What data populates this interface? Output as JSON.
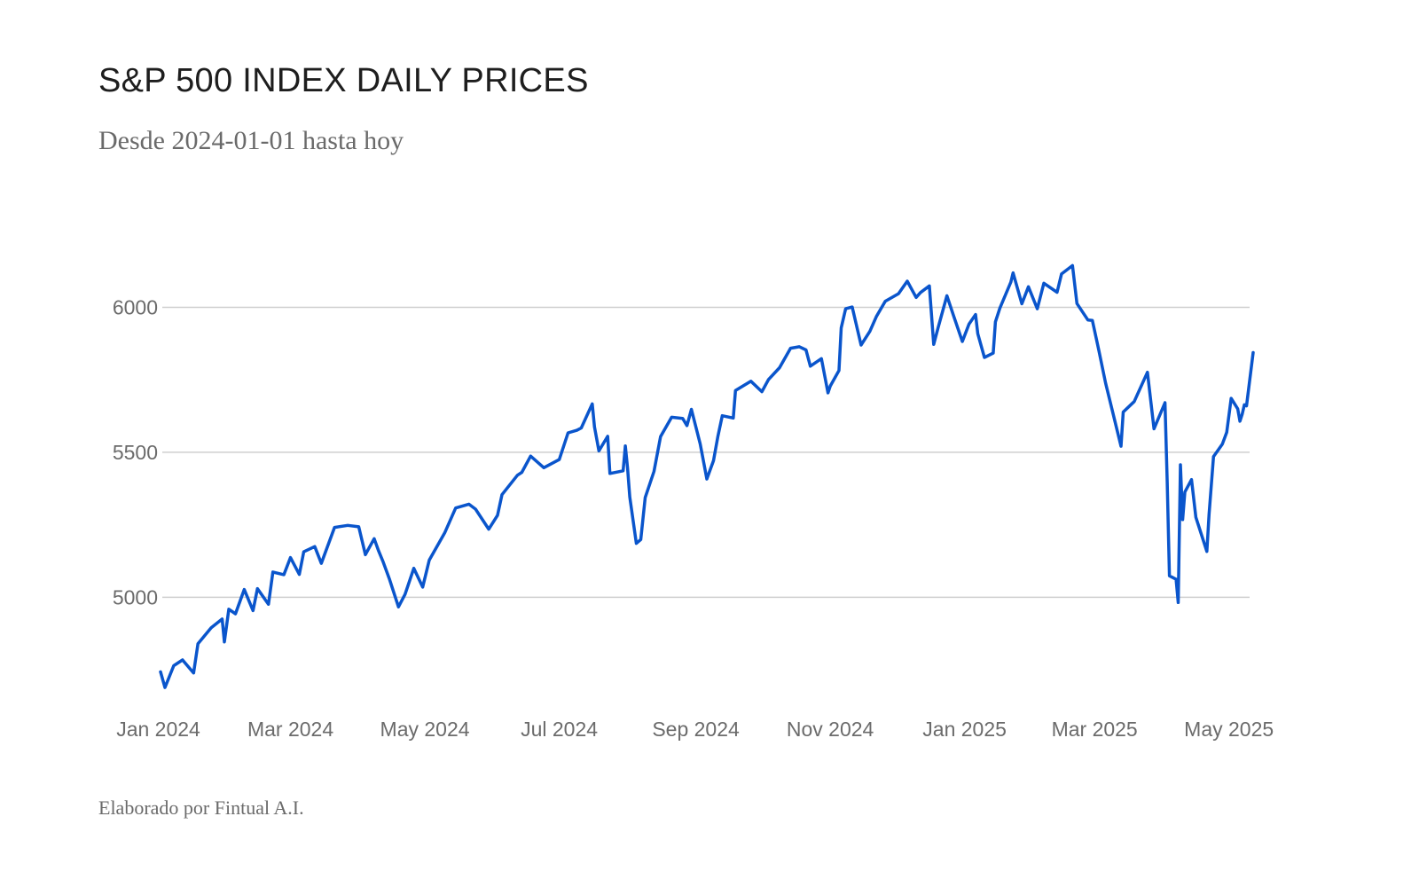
{
  "title": "S&P 500 INDEX DAILY PRICES",
  "subtitle": "Desde 2024-01-01 hasta hoy",
  "footer": "Elaborado por Fintual A.I.",
  "chart_data": {
    "type": "line",
    "title": "S&P 500 INDEX DAILY PRICES",
    "subtitle": "Desde 2024-01-01 hasta hoy",
    "xlabel": "",
    "ylabel": "",
    "grid": true,
    "legend": "none",
    "line_color": "#0a55cc",
    "grid_color": "#cfcfcf",
    "x_range": [
      "2024-01-02",
      "2025-05-12"
    ],
    "ylim": [
      4680,
      6240
    ],
    "y_ticks": [
      5000,
      5500,
      6000
    ],
    "y_tick_labels": [
      "5000",
      "5500",
      "6000"
    ],
    "x_ticks": [
      "2024-01-01",
      "2024-03-01",
      "2024-05-01",
      "2024-07-01",
      "2024-09-01",
      "2024-11-01",
      "2025-01-01",
      "2025-03-01",
      "2025-05-01"
    ],
    "x_tick_labels": [
      "Jan 2024",
      "Mar 2024",
      "May 2024",
      "Jul 2024",
      "Sep 2024",
      "Nov 2024",
      "Jan 2025",
      "Mar 2025",
      "May 2025"
    ],
    "series": [
      {
        "name": "S&P 500",
        "points": [
          [
            "2024-01-02",
            4743
          ],
          [
            "2024-01-04",
            4689
          ],
          [
            "2024-01-08",
            4764
          ],
          [
            "2024-01-12",
            4784
          ],
          [
            "2024-01-17",
            4739
          ],
          [
            "2024-01-19",
            4840
          ],
          [
            "2024-01-25",
            4895
          ],
          [
            "2024-01-30",
            4925
          ],
          [
            "2024-01-31",
            4846
          ],
          [
            "2024-02-02",
            4959
          ],
          [
            "2024-02-05",
            4943
          ],
          [
            "2024-02-09",
            5027
          ],
          [
            "2024-02-13",
            4954
          ],
          [
            "2024-02-15",
            5030
          ],
          [
            "2024-02-20",
            4976
          ],
          [
            "2024-02-22",
            5087
          ],
          [
            "2024-02-27",
            5078
          ],
          [
            "2024-03-01",
            5137
          ],
          [
            "2024-03-05",
            5079
          ],
          [
            "2024-03-07",
            5157
          ],
          [
            "2024-03-12",
            5175
          ],
          [
            "2024-03-15",
            5117
          ],
          [
            "2024-03-21",
            5241
          ],
          [
            "2024-03-27",
            5248
          ],
          [
            "2024-04-01",
            5243
          ],
          [
            "2024-04-04",
            5147
          ],
          [
            "2024-04-08",
            5202
          ],
          [
            "2024-04-10",
            5160
          ],
          [
            "2024-04-12",
            5123
          ],
          [
            "2024-04-15",
            5061
          ],
          [
            "2024-04-19",
            4967
          ],
          [
            "2024-04-22",
            5010
          ],
          [
            "2024-04-26",
            5100
          ],
          [
            "2024-04-30",
            5035
          ],
          [
            "2024-05-03",
            5128
          ],
          [
            "2024-05-10",
            5222
          ],
          [
            "2024-05-15",
            5308
          ],
          [
            "2024-05-21",
            5321
          ],
          [
            "2024-05-24",
            5304
          ],
          [
            "2024-05-30",
            5235
          ],
          [
            "2024-06-03",
            5283
          ],
          [
            "2024-06-05",
            5354
          ],
          [
            "2024-06-12",
            5421
          ],
          [
            "2024-06-14",
            5431
          ],
          [
            "2024-06-18",
            5487
          ],
          [
            "2024-06-24",
            5447
          ],
          [
            "2024-07-01",
            5475
          ],
          [
            "2024-07-05",
            5567
          ],
          [
            "2024-07-09",
            5576
          ],
          [
            "2024-07-11",
            5584
          ],
          [
            "2024-07-16",
            5667
          ],
          [
            "2024-07-17",
            5588
          ],
          [
            "2024-07-19",
            5505
          ],
          [
            "2024-07-23",
            5555
          ],
          [
            "2024-07-24",
            5427
          ],
          [
            "2024-07-30",
            5436
          ],
          [
            "2024-07-31",
            5522
          ],
          [
            "2024-08-01",
            5446
          ],
          [
            "2024-08-02",
            5346
          ],
          [
            "2024-08-05",
            5186
          ],
          [
            "2024-08-07",
            5199
          ],
          [
            "2024-08-09",
            5344
          ],
          [
            "2024-08-13",
            5434
          ],
          [
            "2024-08-16",
            5554
          ],
          [
            "2024-08-21",
            5621
          ],
          [
            "2024-08-26",
            5617
          ],
          [
            "2024-08-28",
            5592
          ],
          [
            "2024-08-30",
            5648
          ],
          [
            "2024-09-03",
            5529
          ],
          [
            "2024-09-06",
            5408
          ],
          [
            "2024-09-09",
            5471
          ],
          [
            "2024-09-11",
            5554
          ],
          [
            "2024-09-13",
            5626
          ],
          [
            "2024-09-18",
            5618
          ],
          [
            "2024-09-19",
            5713
          ],
          [
            "2024-09-26",
            5745
          ],
          [
            "2024-10-01",
            5709
          ],
          [
            "2024-10-04",
            5751
          ],
          [
            "2024-10-09",
            5792
          ],
          [
            "2024-10-14",
            5859
          ],
          [
            "2024-10-18",
            5864
          ],
          [
            "2024-10-21",
            5853
          ],
          [
            "2024-10-23",
            5797
          ],
          [
            "2024-10-28",
            5823
          ],
          [
            "2024-10-31",
            5705
          ],
          [
            "2024-11-01",
            5728
          ],
          [
            "2024-11-05",
            5782
          ],
          [
            "2024-11-06",
            5929
          ],
          [
            "2024-11-08",
            5995
          ],
          [
            "2024-11-11",
            6001
          ],
          [
            "2024-11-15",
            5870
          ],
          [
            "2024-11-19",
            5917
          ],
          [
            "2024-11-22",
            5969
          ],
          [
            "2024-11-26",
            6021
          ],
          [
            "2024-12-02",
            6047
          ],
          [
            "2024-12-06",
            6090
          ],
          [
            "2024-12-10",
            6034
          ],
          [
            "2024-12-12",
            6051
          ],
          [
            "2024-12-16",
            6074
          ],
          [
            "2024-12-18",
            5872
          ],
          [
            "2024-12-20",
            5930
          ],
          [
            "2024-12-24",
            6040
          ],
          [
            "2024-12-27",
            5971
          ],
          [
            "2024-12-31",
            5882
          ],
          [
            "2025-01-03",
            5942
          ],
          [
            "2025-01-06",
            5975
          ],
          [
            "2025-01-07",
            5909
          ],
          [
            "2025-01-10",
            5827
          ],
          [
            "2025-01-14",
            5842
          ],
          [
            "2025-01-15",
            5950
          ],
          [
            "2025-01-17",
            5997
          ],
          [
            "2025-01-22",
            6087
          ],
          [
            "2025-01-23",
            6119
          ],
          [
            "2025-01-27",
            6012
          ],
          [
            "2025-01-30",
            6071
          ],
          [
            "2025-02-03",
            5995
          ],
          [
            "2025-02-06",
            6083
          ],
          [
            "2025-02-12",
            6052
          ],
          [
            "2025-02-14",
            6115
          ],
          [
            "2025-02-19",
            6144
          ],
          [
            "2025-02-21",
            6013
          ],
          [
            "2025-02-26",
            5956
          ],
          [
            "2025-02-28",
            5955
          ],
          [
            "2025-03-03",
            5850
          ],
          [
            "2025-03-06",
            5739
          ],
          [
            "2025-03-10",
            5615
          ],
          [
            "2025-03-13",
            5521
          ],
          [
            "2025-03-14",
            5639
          ],
          [
            "2025-03-19",
            5675
          ],
          [
            "2025-03-25",
            5776
          ],
          [
            "2025-03-28",
            5581
          ],
          [
            "2025-04-02",
            5671
          ],
          [
            "2025-04-03",
            5397
          ],
          [
            "2025-04-04",
            5074
          ],
          [
            "2025-04-07",
            5062
          ],
          [
            "2025-04-08",
            4982
          ],
          [
            "2025-04-09",
            5457
          ],
          [
            "2025-04-10",
            5268
          ],
          [
            "2025-04-11",
            5363
          ],
          [
            "2025-04-14",
            5406
          ],
          [
            "2025-04-16",
            5276
          ],
          [
            "2025-04-21",
            5158
          ],
          [
            "2025-04-22",
            5287
          ],
          [
            "2025-04-24",
            5485
          ],
          [
            "2025-04-28",
            5528
          ],
          [
            "2025-04-30",
            5569
          ],
          [
            "2025-05-02",
            5686
          ],
          [
            "2025-05-05",
            5650
          ],
          [
            "2025-05-06",
            5607
          ],
          [
            "2025-05-07",
            5631
          ],
          [
            "2025-05-08",
            5664
          ],
          [
            "2025-05-09",
            5660
          ],
          [
            "2025-05-12",
            5844
          ]
        ]
      }
    ]
  }
}
